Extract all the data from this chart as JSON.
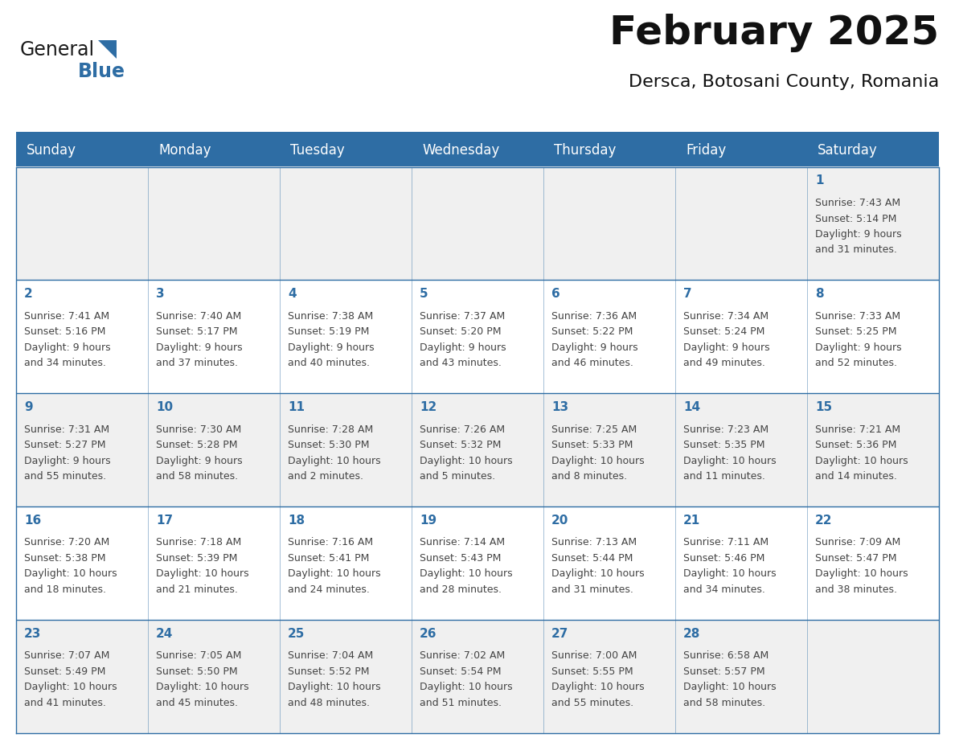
{
  "title": "February 2025",
  "subtitle": "Dersca, Botosani County, Romania",
  "header_bg": "#2E6DA4",
  "header_text_color": "#FFFFFF",
  "cell_bg_odd": "#F0F0F0",
  "cell_bg_even": "#FFFFFF",
  "day_number_color": "#2E6DA4",
  "cell_text_color": "#444444",
  "border_color": "#2E6DA4",
  "days_of_week": [
    "Sunday",
    "Monday",
    "Tuesday",
    "Wednesday",
    "Thursday",
    "Friday",
    "Saturday"
  ],
  "calendar": [
    [
      null,
      null,
      null,
      null,
      null,
      null,
      {
        "day": "1",
        "sunrise": "7:43 AM",
        "sunset": "5:14 PM",
        "daylight_line1": "Daylight: 9 hours",
        "daylight_line2": "and 31 minutes."
      }
    ],
    [
      {
        "day": "2",
        "sunrise": "7:41 AM",
        "sunset": "5:16 PM",
        "daylight_line1": "Daylight: 9 hours",
        "daylight_line2": "and 34 minutes."
      },
      {
        "day": "3",
        "sunrise": "7:40 AM",
        "sunset": "5:17 PM",
        "daylight_line1": "Daylight: 9 hours",
        "daylight_line2": "and 37 minutes."
      },
      {
        "day": "4",
        "sunrise": "7:38 AM",
        "sunset": "5:19 PM",
        "daylight_line1": "Daylight: 9 hours",
        "daylight_line2": "and 40 minutes."
      },
      {
        "day": "5",
        "sunrise": "7:37 AM",
        "sunset": "5:20 PM",
        "daylight_line1": "Daylight: 9 hours",
        "daylight_line2": "and 43 minutes."
      },
      {
        "day": "6",
        "sunrise": "7:36 AM",
        "sunset": "5:22 PM",
        "daylight_line1": "Daylight: 9 hours",
        "daylight_line2": "and 46 minutes."
      },
      {
        "day": "7",
        "sunrise": "7:34 AM",
        "sunset": "5:24 PM",
        "daylight_line1": "Daylight: 9 hours",
        "daylight_line2": "and 49 minutes."
      },
      {
        "day": "8",
        "sunrise": "7:33 AM",
        "sunset": "5:25 PM",
        "daylight_line1": "Daylight: 9 hours",
        "daylight_line2": "and 52 minutes."
      }
    ],
    [
      {
        "day": "9",
        "sunrise": "7:31 AM",
        "sunset": "5:27 PM",
        "daylight_line1": "Daylight: 9 hours",
        "daylight_line2": "and 55 minutes."
      },
      {
        "day": "10",
        "sunrise": "7:30 AM",
        "sunset": "5:28 PM",
        "daylight_line1": "Daylight: 9 hours",
        "daylight_line2": "and 58 minutes."
      },
      {
        "day": "11",
        "sunrise": "7:28 AM",
        "sunset": "5:30 PM",
        "daylight_line1": "Daylight: 10 hours",
        "daylight_line2": "and 2 minutes."
      },
      {
        "day": "12",
        "sunrise": "7:26 AM",
        "sunset": "5:32 PM",
        "daylight_line1": "Daylight: 10 hours",
        "daylight_line2": "and 5 minutes."
      },
      {
        "day": "13",
        "sunrise": "7:25 AM",
        "sunset": "5:33 PM",
        "daylight_line1": "Daylight: 10 hours",
        "daylight_line2": "and 8 minutes."
      },
      {
        "day": "14",
        "sunrise": "7:23 AM",
        "sunset": "5:35 PM",
        "daylight_line1": "Daylight: 10 hours",
        "daylight_line2": "and 11 minutes."
      },
      {
        "day": "15",
        "sunrise": "7:21 AM",
        "sunset": "5:36 PM",
        "daylight_line1": "Daylight: 10 hours",
        "daylight_line2": "and 14 minutes."
      }
    ],
    [
      {
        "day": "16",
        "sunrise": "7:20 AM",
        "sunset": "5:38 PM",
        "daylight_line1": "Daylight: 10 hours",
        "daylight_line2": "and 18 minutes."
      },
      {
        "day": "17",
        "sunrise": "7:18 AM",
        "sunset": "5:39 PM",
        "daylight_line1": "Daylight: 10 hours",
        "daylight_line2": "and 21 minutes."
      },
      {
        "day": "18",
        "sunrise": "7:16 AM",
        "sunset": "5:41 PM",
        "daylight_line1": "Daylight: 10 hours",
        "daylight_line2": "and 24 minutes."
      },
      {
        "day": "19",
        "sunrise": "7:14 AM",
        "sunset": "5:43 PM",
        "daylight_line1": "Daylight: 10 hours",
        "daylight_line2": "and 28 minutes."
      },
      {
        "day": "20",
        "sunrise": "7:13 AM",
        "sunset": "5:44 PM",
        "daylight_line1": "Daylight: 10 hours",
        "daylight_line2": "and 31 minutes."
      },
      {
        "day": "21",
        "sunrise": "7:11 AM",
        "sunset": "5:46 PM",
        "daylight_line1": "Daylight: 10 hours",
        "daylight_line2": "and 34 minutes."
      },
      {
        "day": "22",
        "sunrise": "7:09 AM",
        "sunset": "5:47 PM",
        "daylight_line1": "Daylight: 10 hours",
        "daylight_line2": "and 38 minutes."
      }
    ],
    [
      {
        "day": "23",
        "sunrise": "7:07 AM",
        "sunset": "5:49 PM",
        "daylight_line1": "Daylight: 10 hours",
        "daylight_line2": "and 41 minutes."
      },
      {
        "day": "24",
        "sunrise": "7:05 AM",
        "sunset": "5:50 PM",
        "daylight_line1": "Daylight: 10 hours",
        "daylight_line2": "and 45 minutes."
      },
      {
        "day": "25",
        "sunrise": "7:04 AM",
        "sunset": "5:52 PM",
        "daylight_line1": "Daylight: 10 hours",
        "daylight_line2": "and 48 minutes."
      },
      {
        "day": "26",
        "sunrise": "7:02 AM",
        "sunset": "5:54 PM",
        "daylight_line1": "Daylight: 10 hours",
        "daylight_line2": "and 51 minutes."
      },
      {
        "day": "27",
        "sunrise": "7:00 AM",
        "sunset": "5:55 PM",
        "daylight_line1": "Daylight: 10 hours",
        "daylight_line2": "and 55 minutes."
      },
      {
        "day": "28",
        "sunrise": "6:58 AM",
        "sunset": "5:57 PM",
        "daylight_line1": "Daylight: 10 hours",
        "daylight_line2": "and 58 minutes."
      },
      null
    ]
  ],
  "logo_text_general": "General",
  "logo_text_blue": "Blue",
  "logo_color_general": "#1a1a1a",
  "logo_color_blue": "#2E6DA4",
  "logo_triangle_color": "#2E6DA4",
  "title_fontsize": 36,
  "subtitle_fontsize": 16,
  "header_fontsize": 12,
  "day_number_fontsize": 11,
  "cell_fontsize": 9
}
